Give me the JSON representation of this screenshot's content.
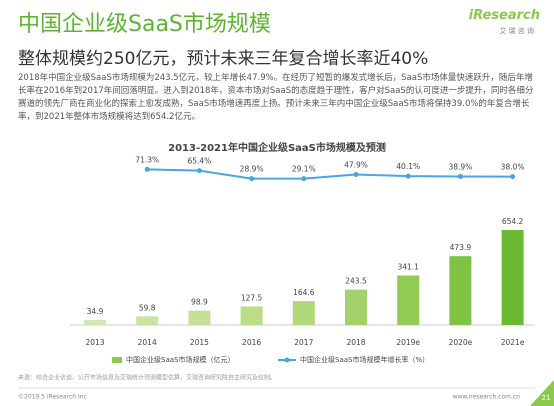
{
  "header": {
    "title": "中国企业级SaaS市场规模",
    "subtitle": "整体规模约250亿元，预计未来三年复合增长率近40%",
    "logo": "iResearch",
    "logo_sub": "艾 瑞 咨 询"
  },
  "body": "2018年中国企业级SaaS市场规模为243.5亿元，较上年增长47.9%。在经历了短暂的爆发式增长后，SaaS市场体量快速跃升，随后年增长率在2016年到2017年间回落明显。进入到2018年，资本市场对SaaS的态度趋于理性，客户对SaaS的认可度进一步提升，同时各细分赛道的领先厂商在商业化的探索上愈发成熟，SaaS市场增速再度上扬。预计未来三年内中国企业级SaaS市场将保持39.0%的年复合增长率，到2021年整体市场规模将达到654.2亿元。",
  "chart_data": {
    "type": "bar",
    "title": "2013-2021年中国企业级SaaS市场规模及预测",
    "categories": [
      "2013",
      "2014",
      "2015",
      "2016",
      "2017",
      "2018",
      "2019e",
      "2020e",
      "2021e"
    ],
    "series": [
      {
        "name": "中国企业级SaaS市场规模（亿元）",
        "colors": [
          "#d3e8b0",
          "#cbe4a3",
          "#c3e096",
          "#bbdc89",
          "#b2d87c",
          "#a4d26a",
          "#92cb56",
          "#7fc244",
          "#6cba33"
        ],
        "color": "#8cc84b",
        "values": [
          34.9,
          59.8,
          98.9,
          127.5,
          164.6,
          243.5,
          341.1,
          473.9,
          654.2
        ]
      },
      {
        "name": "中国企业级SaaS市场规模年增长率（%）",
        "color": "#4ba6df",
        "type": "line",
        "values": [
          null,
          71.3,
          65.4,
          28.9,
          29.1,
          47.9,
          40.1,
          38.9,
          38.0
        ],
        "value_labels": [
          null,
          "71.3%",
          "65.4%",
          "28.9%",
          "29.1%",
          "47.9%",
          "40.1%",
          "38.9%",
          "38.0%"
        ]
      }
    ]
  },
  "source": "来源：综合企业访谈、公开市场信息及艾瑞统计预测模型估算，艾瑞咨询研究院自主研究及绘制。",
  "footer": {
    "copyright": "©2019.5 iResearch Inc",
    "url": "www.iresearch.com.cn",
    "page": "21"
  }
}
